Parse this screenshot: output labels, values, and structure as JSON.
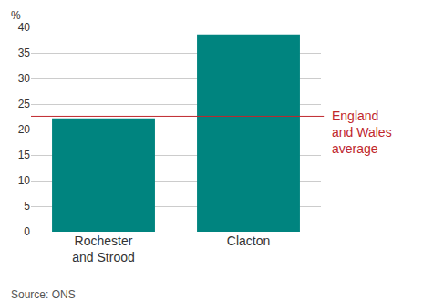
{
  "chart_data": {
    "type": "bar",
    "y_label": "%",
    "categories": [
      "Rochester and Strood",
      "Clacton"
    ],
    "values": [
      22.2,
      38.6
    ],
    "color": "#00847f",
    "ylim": [
      0,
      40
    ],
    "yticks": [
      0,
      5,
      10,
      15,
      20,
      25,
      30,
      35,
      40
    ],
    "grid": true,
    "reference_line": {
      "value": 22.6,
      "label": "England and Wales average",
      "color": "#c0272d"
    },
    "source": "Source: ONS"
  }
}
